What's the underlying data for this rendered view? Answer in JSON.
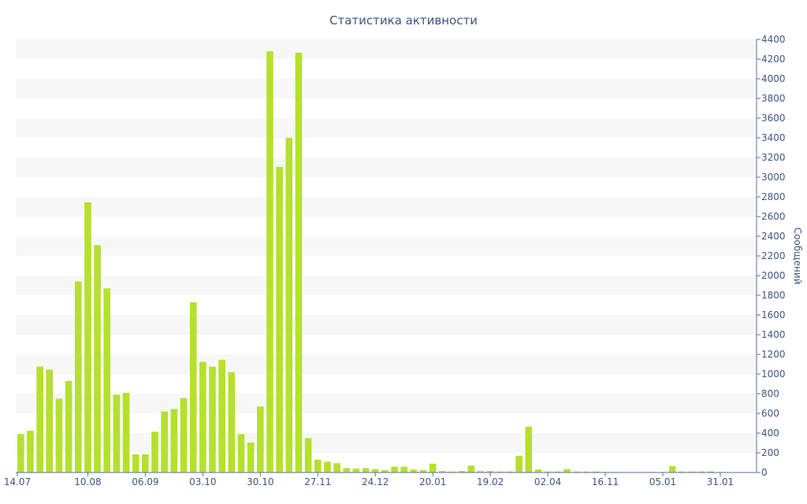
{
  "chart_data": {
    "type": "bar",
    "title": "Статистика активности",
    "ylabel": "Сообщений",
    "xlabel": "",
    "ylim": [
      0,
      4400
    ],
    "y_ticks": [
      0,
      200,
      400,
      600,
      800,
      1000,
      1200,
      1400,
      1600,
      1800,
      2000,
      2200,
      2400,
      2600,
      2800,
      3000,
      3200,
      3400,
      3600,
      3800,
      4000,
      4200,
      4400
    ],
    "x_tick_labels": [
      {
        "index": 0,
        "label": "14.07"
      },
      {
        "index": 7,
        "label": "10.08"
      },
      {
        "index": 13,
        "label": "06.09"
      },
      {
        "index": 19,
        "label": "03.10"
      },
      {
        "index": 25,
        "label": "30.10"
      },
      {
        "index": 31,
        "label": "27.11"
      },
      {
        "index": 37,
        "label": "24.12"
      },
      {
        "index": 43,
        "label": "20.01"
      },
      {
        "index": 49,
        "label": "19.02"
      },
      {
        "index": 55,
        "label": "02.04"
      },
      {
        "index": 61,
        "label": "16.11"
      },
      {
        "index": 67,
        "label": "05.01"
      },
      {
        "index": 73,
        "label": "31.01"
      }
    ],
    "grid": "horizontal alternating bands",
    "y_axis_position": "right",
    "bar_color": "#b5e02f",
    "values": [
      390,
      425,
      1075,
      1045,
      750,
      930,
      1940,
      2745,
      2310,
      1870,
      790,
      810,
      185,
      185,
      415,
      620,
      645,
      755,
      1730,
      1125,
      1075,
      1145,
      1020,
      390,
      305,
      670,
      4280,
      3105,
      3400,
      4265,
      350,
      130,
      110,
      95,
      45,
      40,
      45,
      35,
      25,
      60,
      60,
      30,
      25,
      90,
      15,
      10,
      15,
      70,
      15,
      15,
      10,
      10,
      170,
      465,
      30,
      10,
      10,
      35,
      10,
      10,
      10,
      5,
      5,
      5,
      5,
      5,
      5,
      5,
      65,
      10,
      10,
      10,
      10,
      5
    ]
  }
}
